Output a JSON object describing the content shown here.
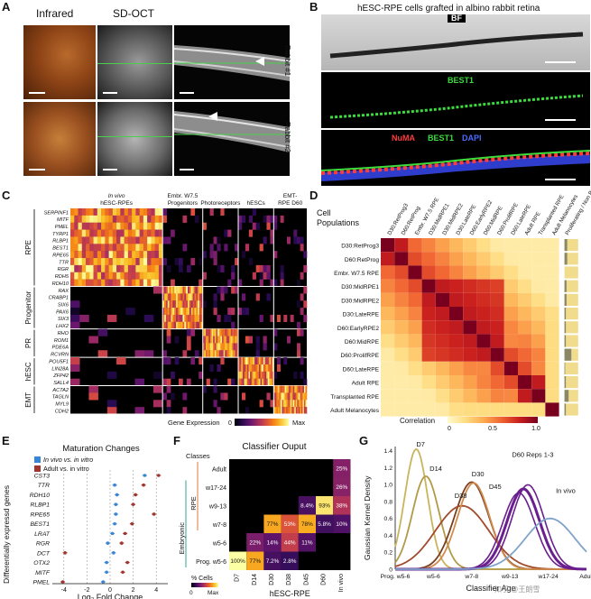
{
  "panel_letters": {
    "a": "A",
    "b": "B",
    "c": "C",
    "d": "D",
    "e": "E",
    "f": "F",
    "g": "G"
  },
  "panel_a": {
    "col_infrared": "Infrared",
    "col_sdoct": "SD-OCT",
    "row1": "Rabbit #1",
    "row2": "Rabbit #2"
  },
  "panel_b": {
    "title": "hESC-RPE cells grafted in albino rabbit retina",
    "bf": "BF",
    "best1": "BEST1",
    "numa": "NuMA",
    "best1_b": "BEST1",
    "dapi": "DAPI",
    "colors": {
      "numa": "#ff3b3b",
      "best1": "#3cdc3c",
      "dapi": "#4a6cff"
    }
  },
  "panel_c": {
    "col_headers": [
      "In vivo\nhESC-RPEs",
      "Embr. W7.5\nProgenitors",
      "Photoreceptors",
      "hESCs",
      "EMT-\nRPE D60"
    ],
    "groups": [
      {
        "name": "RPE",
        "genes": [
          "SERPINF1",
          "MITF",
          "PMEL",
          "TYRP1",
          "RLBP1",
          "BEST1",
          "RPE65",
          "TTR",
          "RGR",
          "RDH5",
          "RDH10"
        ]
      },
      {
        "name": "Progenitor",
        "genes": [
          "RAX",
          "CRABP1",
          "SIX6",
          "PAX6",
          "SIX3",
          "LHX2"
        ]
      },
      {
        "name": "PR",
        "genes": [
          "RHO",
          "ROM1",
          "PDE6A",
          "RCVRN"
        ]
      },
      {
        "name": "hESC",
        "genes": [
          "POU5F1",
          "LIN28A",
          "ZFP42",
          "SALL4"
        ]
      },
      {
        "name": "EMT",
        "genes": [
          "ACTA2",
          "TAGLN",
          "MYL9",
          "CDH2"
        ]
      }
    ],
    "legend_label": "Gene Expression",
    "legend_min": "0",
    "legend_max": "Max"
  },
  "panel_d": {
    "header": "Cell\nPopulations",
    "populations": [
      "D30:RetProg3",
      "D60:RetProg",
      "Embr. W7.5 RPE",
      "D30:MidRPE1",
      "D30:MidRPE2",
      "D30:LateRPE",
      "D60:EarlyRPE2",
      "D60:MidRPE",
      "D60:ProlifRPE",
      "D60:LateRPE",
      "Adult RPE",
      "Transplanted RPE",
      "Adult Melanocytes"
    ],
    "extra_cols": [
      "Proliferating / Non Prolif."
    ],
    "legend_label": "Correlation",
    "legend_ticks": [
      "0",
      "0.5",
      "1.0"
    ]
  },
  "panel_e": {
    "title": "Maturation Changes",
    "legend": [
      "In vivo vs. in vitro",
      "Adult vs. in vitro"
    ],
    "ylabel": "Differentially expressd genes",
    "xlabel": "Log₂ Fold Change",
    "colors": {
      "invivo": "#3a86d6",
      "adult": "#a0362f"
    }
  },
  "panel_f": {
    "title": "Classifier Ouput",
    "classes_label": "Classes",
    "rpe_label": "RPE",
    "embryonic_label": "Embryonic",
    "rows": [
      "Adult",
      "w17-24",
      "w9-13",
      "w7-8",
      "w5-6",
      "Prog. w5-6"
    ],
    "cols": [
      "D7",
      "D14",
      "D30",
      "D38",
      "D45",
      "D60",
      "In vivo"
    ],
    "xlabel": "hESC-RPE",
    "legend_label": "% Cells",
    "legend_min": "0",
    "legend_max": "Max",
    "cells": [
      {
        "r": 0,
        "c": 6,
        "v": 25,
        "label": "25%"
      },
      {
        "r": 1,
        "c": 6,
        "v": 26,
        "label": "26%"
      },
      {
        "r": 2,
        "c": 4,
        "v": 8.4,
        "label": "8.4%"
      },
      {
        "r": 2,
        "c": 5,
        "v": 93,
        "label": "93%"
      },
      {
        "r": 2,
        "c": 6,
        "v": 38,
        "label": "38%"
      },
      {
        "r": 3,
        "c": 2,
        "v": 77,
        "label": "77%"
      },
      {
        "r": 3,
        "c": 3,
        "v": 53,
        "label": "53%"
      },
      {
        "r": 3,
        "c": 4,
        "v": 78,
        "label": "78%"
      },
      {
        "r": 3,
        "c": 5,
        "v": 5.8,
        "label": "5.8%"
      },
      {
        "r": 3,
        "c": 6,
        "v": 10,
        "label": "10%"
      },
      {
        "r": 4,
        "c": 1,
        "v": 22,
        "label": "22%"
      },
      {
        "r": 4,
        "c": 2,
        "v": 14,
        "label": "14%"
      },
      {
        "r": 4,
        "c": 3,
        "v": 44,
        "label": "44%"
      },
      {
        "r": 4,
        "c": 4,
        "v": 11,
        "label": "11%"
      },
      {
        "r": 5,
        "c": 0,
        "v": 100,
        "label": "100%"
      },
      {
        "r": 5,
        "c": 1,
        "v": 77,
        "label": "77%"
      },
      {
        "r": 5,
        "c": 2,
        "v": 7.2,
        "label": "7.2%"
      },
      {
        "r": 5,
        "c": 3,
        "v": 2.8,
        "label": "2.8%"
      }
    ]
  },
  "panel_g": {
    "ylabel": "Gaussian Kernel Density",
    "xlabel": "Classifier Age",
    "x_ticks": [
      "Prog. w5-6",
      "w5-6",
      "w7-8",
      "w9-13",
      "w17-24",
      "Adult"
    ],
    "y_ticks": [
      "0",
      "0.2",
      "0.4",
      "0.6",
      "0.8",
      "1.0",
      "1.2",
      "1.4"
    ],
    "curve_labels": [
      "D7",
      "D14",
      "D30",
      "D38",
      "D45",
      "D60 Reps 1-3",
      "In vivo"
    ],
    "watermark": "知乎 @王朗雪"
  },
  "chart_data": [
    {
      "type": "scatter",
      "title": "Maturation Changes",
      "xlabel": "Log₂ Fold Change",
      "ylabel": "Differentially expressd genes",
      "xlim": [
        -5,
        5
      ],
      "x_ticks": [
        -4,
        -2,
        0,
        2,
        4
      ],
      "categories": [
        "CST3",
        "TTR",
        "RDH10",
        "RLBP1",
        "RPE65",
        "BEST1",
        "LRAT",
        "RGR",
        "DCT",
        "OTX2",
        "MITF",
        "PMEL"
      ],
      "series": [
        {
          "name": "In vivo vs. in vitro",
          "values": [
            3.0,
            0.4,
            0.6,
            0.5,
            0.5,
            0.4,
            0.2,
            -0.2,
            0.3,
            -0.3,
            -0.3,
            -0.6
          ]
        },
        {
          "name": "Adult vs. in vitro",
          "values": [
            4.2,
            2.9,
            2.2,
            2.0,
            3.8,
            1.9,
            1.3,
            1.0,
            -3.9,
            1.5,
            1.1,
            -4.1
          ]
        }
      ],
      "legend": "top-right",
      "grid": true
    },
    {
      "type": "heatmap",
      "title": "Classifier Ouput",
      "xlabel": "hESC-RPE",
      "ylabel": "Classes",
      "categories": [
        "D7",
        "D14",
        "D30",
        "D38",
        "D45",
        "D60",
        "In vivo"
      ],
      "rows": [
        "Adult",
        "w17-24",
        "w9-13",
        "w7-8",
        "w5-6",
        "Prog. w5-6"
      ]
    },
    {
      "type": "line",
      "xlabel": "Classifier Age",
      "ylabel": "Gaussian Kernel Density",
      "ylim": [
        0,
        1.45
      ],
      "series": [
        {
          "name": "D7",
          "peak_x": 0.55,
          "peak_y": 1.42
        },
        {
          "name": "D14",
          "peak_x": 0.8,
          "peak_y": 1.1
        },
        {
          "name": "D30",
          "peak_x": 2.0,
          "peak_y": 1.03
        },
        {
          "name": "D38",
          "peak_x": 1.75,
          "peak_y": 0.75
        },
        {
          "name": "D45",
          "peak_x": 2.05,
          "peak_y": 1.02
        },
        {
          "name": "D60 Reps 1-3",
          "peak_x": 3.35,
          "peak_y": 0.95
        },
        {
          "name": "In vivo",
          "peak_x": 4.05,
          "peak_y": 0.6
        }
      ]
    }
  ]
}
